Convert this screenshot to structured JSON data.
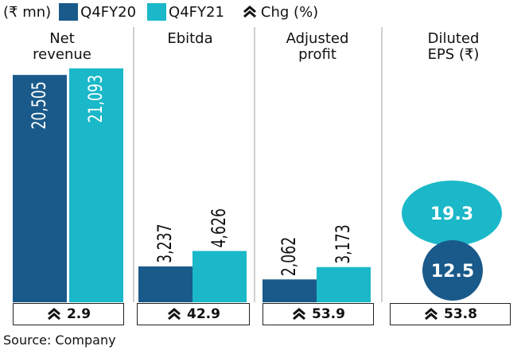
{
  "legend": {
    "unit": "(₹ mn)",
    "series": [
      {
        "name": "Q4FY20",
        "color": "#1a5a8a"
      },
      {
        "name": "Q4FY21",
        "color": "#1ab8c8"
      }
    ],
    "change_label": "Chg (%)"
  },
  "chart_data": {
    "type": "bar",
    "categories": [
      "Net revenue",
      "Ebitda",
      "Adjusted profit",
      "Diluted EPS (₹)"
    ],
    "category_titles": [
      [
        "Net",
        "revenue"
      ],
      [
        "Ebitda"
      ],
      [
        "Adjusted",
        "profit"
      ],
      [
        "Diluted",
        "EPS (₹)"
      ]
    ],
    "series": [
      {
        "name": "Q4FY20",
        "values": [
          20505,
          3237,
          2062,
          12.5
        ],
        "labels": [
          "20,505",
          "3,237",
          "2,062",
          "12.5"
        ]
      },
      {
        "name": "Q4FY21",
        "values": [
          21093,
          4626,
          3173,
          19.3
        ],
        "labels": [
          "21,093",
          "4,626",
          "3,173",
          "19.3"
        ]
      }
    ],
    "change_pct": [
      2.9,
      42.9,
      53.9,
      53.8
    ],
    "change_labels": [
      "2.9",
      "42.9",
      "53.9",
      "53.8"
    ],
    "eps_shown_as": "circles"
  },
  "source": "Source: Company",
  "colors": {
    "q4fy20": "#1a5a8a",
    "q4fy21": "#1ab8c8",
    "divider": "#bfbfbf",
    "text": "#111111"
  }
}
